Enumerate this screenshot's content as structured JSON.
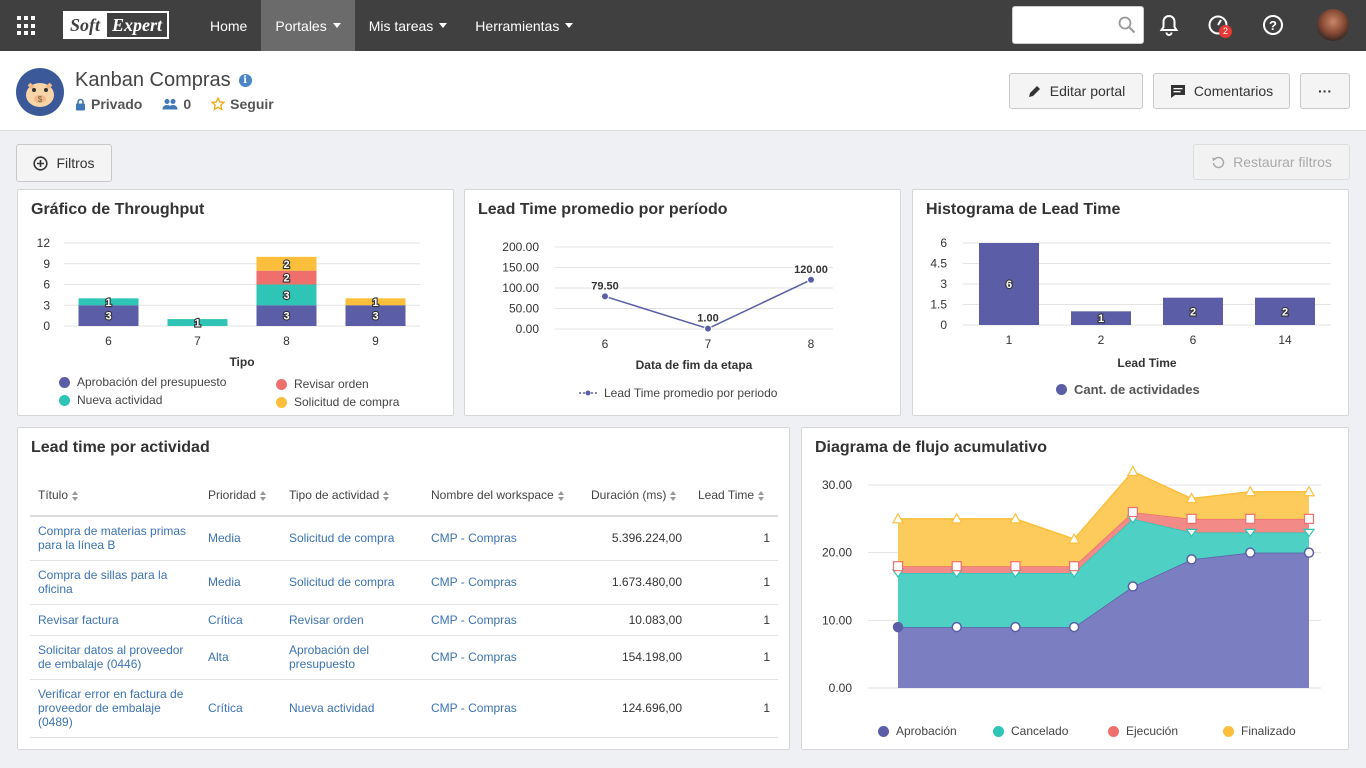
{
  "topbar": {
    "logo_part1": "Soft",
    "logo_part2": "Expert",
    "nav": [
      {
        "label": "Home"
      },
      {
        "label": "Portales"
      },
      {
        "label": "Mis tareas"
      },
      {
        "label": "Herramientas"
      }
    ],
    "search_placeholder": "",
    "notifications_badge": "2"
  },
  "portal": {
    "title": "Kanban Compras",
    "privacy": "Privado",
    "members": "0",
    "follow": "Seguir",
    "edit_button": "Editar portal",
    "comments_button": "Comentarios",
    "more_button": "···"
  },
  "filters": {
    "filters_button": "Filtros",
    "restore_button": "Restaurar filtros"
  },
  "colors": {
    "aprobacion": "#5b5ea6",
    "nueva": "#2ec4b6",
    "revisar": "#ef6f6c",
    "solicitud": "#fbbf3b",
    "ejecucion": "#ef6f6c",
    "finalizado": "#fbbf3b",
    "cancelado": "#2ec4b6",
    "line": "#5b5ea6"
  },
  "chart_data": [
    {
      "type": "bar",
      "title": "Gráfico de Throughput",
      "xlabel": "Tipo",
      "ylabel": "",
      "categories": [
        "6",
        "7",
        "8",
        "9"
      ],
      "ylim": [
        0,
        12
      ],
      "yticks": [
        "12",
        "9",
        "6",
        "3",
        "0"
      ],
      "stacked": true,
      "series": [
        {
          "name": "Aprobación del presupuesto",
          "values": [
            3,
            0,
            3,
            3
          ]
        },
        {
          "name": "Nueva actividad",
          "values": [
            1,
            1,
            3,
            0
          ]
        },
        {
          "name": "Revisar orden",
          "values": [
            0,
            0,
            2,
            0
          ]
        },
        {
          "name": "Solicitud de compra",
          "values": [
            0,
            0,
            2,
            1
          ]
        }
      ],
      "legend": "bottom"
    },
    {
      "type": "line",
      "title": "Lead Time promedio por período",
      "xlabel": "Data de fim da etapa",
      "ylabel": "",
      "x": [
        "6",
        "7",
        "8"
      ],
      "ylim": [
        0,
        200
      ],
      "yticks": [
        "200.00",
        "150.00",
        "100.00",
        "50.00",
        "0.00"
      ],
      "series": [
        {
          "name": "Lead Time promedio por periodo",
          "values": [
            79.5,
            1.0,
            120.0
          ],
          "labels": [
            "79.50",
            "1.00",
            "120.00"
          ]
        }
      ],
      "legend": "bottom"
    },
    {
      "type": "bar",
      "title": "Histograma de Lead Time",
      "xlabel": "Lead Time",
      "ylabel": "",
      "categories": [
        "1",
        "2",
        "6",
        "14"
      ],
      "ylim": [
        0,
        6
      ],
      "yticks": [
        "6",
        "4.5",
        "3",
        "1.5",
        "0"
      ],
      "series": [
        {
          "name": "Cant. de actividades",
          "values": [
            6,
            1,
            2,
            2
          ]
        }
      ],
      "legend": "bottom"
    },
    {
      "type": "area",
      "title": "Diagrama de flujo acumulativo",
      "xlabel": "",
      "ylabel": "",
      "ylim": [
        0,
        30
      ],
      "yticks": [
        "30.00",
        "20.00",
        "10.00",
        "0.00"
      ],
      "stacked": true,
      "series": [
        {
          "name": "Aprobación",
          "values": [
            9,
            9,
            9,
            9,
            15,
            19,
            20,
            20
          ]
        },
        {
          "name": "Cancelado",
          "values": [
            8,
            8,
            8,
            8,
            10,
            4,
            3,
            3
          ]
        },
        {
          "name": "Ejecución",
          "values": [
            1,
            1,
            1,
            1,
            1,
            2,
            2,
            2
          ]
        },
        {
          "name": "Finalizado",
          "values": [
            7,
            7,
            7,
            4,
            6,
            3,
            4,
            4
          ]
        }
      ],
      "legend": "bottom"
    }
  ],
  "leadtime_table": {
    "title": "Lead time por actividad",
    "columns": [
      "Título",
      "Prioridad",
      "Tipo de actividad",
      "Nombre del workspace",
      "Duración (ms)",
      "Lead Time"
    ],
    "rows": [
      [
        "Compra de materias primas para la línea B",
        "Media",
        "Solicitud de compra",
        "CMP - Compras",
        "5.396.224,00",
        "1"
      ],
      [
        "Compra de sillas para la oficina",
        "Media",
        "Solicitud de compra",
        "CMP - Compras",
        "1.673.480,00",
        "1"
      ],
      [
        "Revisar factura",
        "Crítica",
        "Revisar orden",
        "CMP - Compras",
        "10.083,00",
        "1"
      ],
      [
        "Solicitar datos al proveedor de embalaje (0446)",
        "Alta",
        "Aprobación del presupuesto",
        "CMP - Compras",
        "154.198,00",
        "1"
      ],
      [
        "Verificar error en factura de proveedor de embalaje (0489)",
        "Crítica",
        "Nueva actividad",
        "CMP - Compras",
        "124.696,00",
        "1"
      ]
    ]
  }
}
